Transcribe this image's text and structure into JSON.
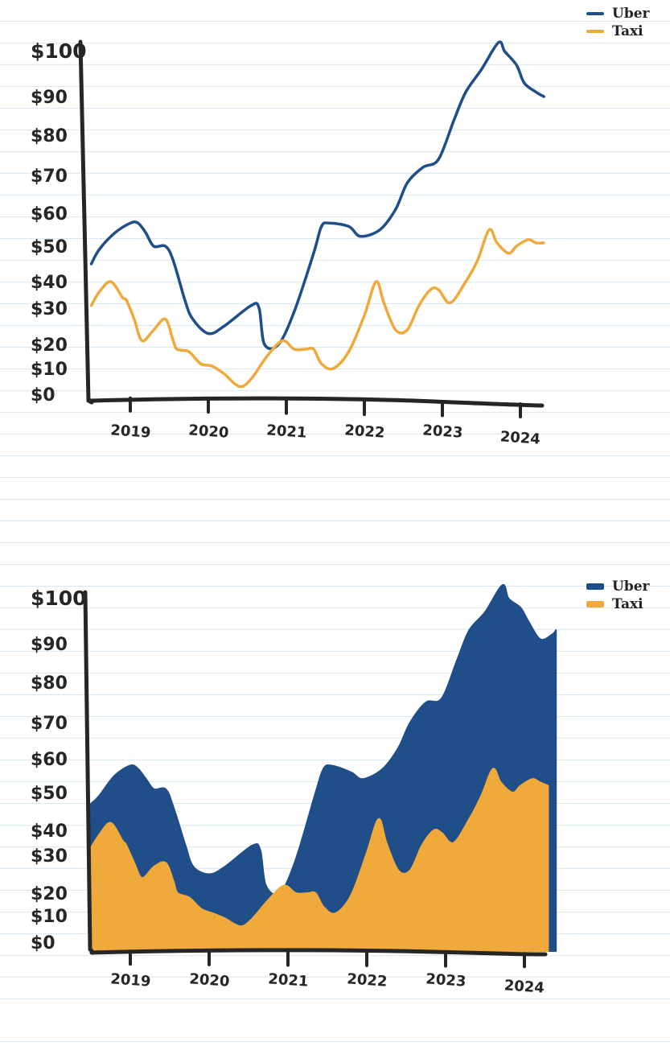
{
  "colors": {
    "uber": "#1f4e89",
    "taxi": "#f0aa3c",
    "axis": "#262626"
  },
  "chart_data": [
    {
      "type": "line",
      "x_ticks": [
        "2019",
        "2020",
        "2021",
        "2022",
        "2023",
        "2024"
      ],
      "y_ticks": [
        "$100",
        "$90",
        "$80",
        "$70",
        "$60",
        "$50",
        "$40",
        "$30",
        "$20",
        "$10",
        "$0"
      ],
      "legend": [
        "Uber",
        "Taxi"
      ],
      "legend_position": "top-right",
      "ylim": [
        0,
        100
      ],
      "xlim": [
        2018.5,
        2024.3
      ],
      "series": [
        {
          "name": "Uber",
          "points": [
            [
              2018.5,
              45
            ],
            [
              2018.6,
              49
            ],
            [
              2018.8,
              54
            ],
            [
              2019.0,
              57
            ],
            [
              2019.1,
              57
            ],
            [
              2019.2,
              54
            ],
            [
              2019.3,
              50
            ],
            [
              2019.45,
              50
            ],
            [
              2019.55,
              46
            ],
            [
              2019.7,
              33
            ],
            [
              2019.8,
              27
            ],
            [
              2020.0,
              23
            ],
            [
              2020.2,
              25
            ],
            [
              2020.55,
              31
            ],
            [
              2020.65,
              30
            ],
            [
              2020.72,
              20
            ],
            [
              2020.9,
              20
            ],
            [
              2021.1,
              29
            ],
            [
              2021.35,
              48
            ],
            [
              2021.45,
              56
            ],
            [
              2021.55,
              57
            ],
            [
              2021.8,
              56
            ],
            [
              2021.95,
              53
            ],
            [
              2022.2,
              55
            ],
            [
              2022.4,
              61
            ],
            [
              2022.55,
              68
            ],
            [
              2022.75,
              72
            ],
            [
              2022.95,
              74
            ],
            [
              2023.15,
              84
            ],
            [
              2023.3,
              91
            ],
            [
              2023.5,
              96
            ],
            [
              2023.72,
              102
            ],
            [
              2023.8,
              100
            ],
            [
              2023.95,
              97
            ],
            [
              2024.05,
              93
            ],
            [
              2024.2,
              91
            ],
            [
              2024.3,
              90
            ]
          ]
        },
        {
          "name": "Taxi",
          "points": [
            [
              2018.5,
              31
            ],
            [
              2018.6,
              36
            ],
            [
              2018.75,
              40
            ],
            [
              2018.9,
              34
            ],
            [
              2018.95,
              33
            ],
            [
              2019.05,
              27
            ],
            [
              2019.15,
              21
            ],
            [
              2019.3,
              24
            ],
            [
              2019.45,
              27
            ],
            [
              2019.55,
              21
            ],
            [
              2019.6,
              18
            ],
            [
              2019.75,
              17
            ],
            [
              2019.9,
              12
            ],
            [
              2020.05,
              11
            ],
            [
              2020.2,
              8
            ],
            [
              2020.4,
              3
            ],
            [
              2020.55,
              6
            ],
            [
              2020.75,
              15
            ],
            [
              2020.95,
              21
            ],
            [
              2021.1,
              18
            ],
            [
              2021.25,
              18
            ],
            [
              2021.35,
              18
            ],
            [
              2021.45,
              12
            ],
            [
              2021.6,
              10
            ],
            [
              2021.8,
              17
            ],
            [
              2022.0,
              28
            ],
            [
              2022.15,
              40
            ],
            [
              2022.25,
              32
            ],
            [
              2022.4,
              24
            ],
            [
              2022.55,
              24
            ],
            [
              2022.7,
              31
            ],
            [
              2022.85,
              37
            ],
            [
              2022.95,
              37
            ],
            [
              2023.1,
              32
            ],
            [
              2023.3,
              40
            ],
            [
              2023.45,
              46
            ],
            [
              2023.6,
              55
            ],
            [
              2023.7,
              51
            ],
            [
              2023.85,
              48
            ],
            [
              2023.95,
              50
            ],
            [
              2024.1,
              52
            ],
            [
              2024.2,
              51
            ],
            [
              2024.3,
              51
            ]
          ]
        }
      ]
    },
    {
      "type": "area",
      "stacked": false,
      "x_ticks": [
        "2019",
        "2020",
        "2021",
        "2022",
        "2023",
        "2024"
      ],
      "y_ticks": [
        "$100",
        "$90",
        "$80",
        "$70",
        "$60",
        "$50",
        "$40",
        "$30",
        "$20",
        "$10",
        "$0"
      ],
      "legend": [
        "Uber",
        "Taxi"
      ],
      "legend_position": "top-right",
      "ylim": [
        0,
        100
      ],
      "xlim": [
        2018.5,
        2024.4
      ],
      "series": [
        {
          "name": "Uber",
          "points": [
            [
              2018.5,
              47
            ],
            [
              2018.6,
              49
            ],
            [
              2018.8,
              55
            ],
            [
              2019.0,
              58
            ],
            [
              2019.1,
              57
            ],
            [
              2019.2,
              54
            ],
            [
              2019.3,
              51
            ],
            [
              2019.45,
              51
            ],
            [
              2019.55,
              46
            ],
            [
              2019.7,
              34
            ],
            [
              2019.8,
              27
            ],
            [
              2020.0,
              25
            ],
            [
              2020.2,
              27
            ],
            [
              2020.55,
              34
            ],
            [
              2020.65,
              32
            ],
            [
              2020.72,
              22
            ],
            [
              2020.9,
              20
            ],
            [
              2021.1,
              29
            ],
            [
              2021.35,
              50
            ],
            [
              2021.45,
              57
            ],
            [
              2021.55,
              58
            ],
            [
              2021.8,
              56
            ],
            [
              2021.95,
              54
            ],
            [
              2022.2,
              57
            ],
            [
              2022.4,
              63
            ],
            [
              2022.55,
              70
            ],
            [
              2022.75,
              75
            ],
            [
              2022.95,
              76
            ],
            [
              2023.15,
              86
            ],
            [
              2023.3,
              93
            ],
            [
              2023.5,
              97
            ],
            [
              2023.72,
              103
            ],
            [
              2023.8,
              100
            ],
            [
              2023.95,
              98
            ],
            [
              2024.05,
              95
            ],
            [
              2024.2,
              91
            ],
            [
              2024.35,
              92
            ],
            [
              2024.4,
              93
            ]
          ]
        },
        {
          "name": "Taxi",
          "points": [
            [
              2018.5,
              33
            ],
            [
              2018.6,
              38
            ],
            [
              2018.75,
              42
            ],
            [
              2018.9,
              36
            ],
            [
              2018.95,
              34
            ],
            [
              2019.05,
              28
            ],
            [
              2019.15,
              24
            ],
            [
              2019.3,
              27
            ],
            [
              2019.45,
              28
            ],
            [
              2019.55,
              23
            ],
            [
              2019.6,
              20
            ],
            [
              2019.75,
              18
            ],
            [
              2019.9,
              13
            ],
            [
              2020.05,
              11
            ],
            [
              2020.2,
              9
            ],
            [
              2020.4,
              6
            ],
            [
              2020.55,
              9
            ],
            [
              2020.75,
              17
            ],
            [
              2020.95,
              22
            ],
            [
              2021.1,
              20
            ],
            [
              2021.25,
              20
            ],
            [
              2021.35,
              20
            ],
            [
              2021.45,
              14
            ],
            [
              2021.6,
              11
            ],
            [
              2021.8,
              19
            ],
            [
              2022.0,
              31
            ],
            [
              2022.15,
              43
            ],
            [
              2022.25,
              35
            ],
            [
              2022.4,
              26
            ],
            [
              2022.55,
              26
            ],
            [
              2022.7,
              34
            ],
            [
              2022.85,
              40
            ],
            [
              2022.95,
              39
            ],
            [
              2023.1,
              35
            ],
            [
              2023.3,
              43
            ],
            [
              2023.45,
              49
            ],
            [
              2023.6,
              57
            ],
            [
              2023.7,
              53
            ],
            [
              2023.85,
              50
            ],
            [
              2023.95,
              52
            ],
            [
              2024.1,
              54
            ],
            [
              2024.2,
              53
            ],
            [
              2024.3,
              52
            ]
          ]
        }
      ]
    }
  ]
}
